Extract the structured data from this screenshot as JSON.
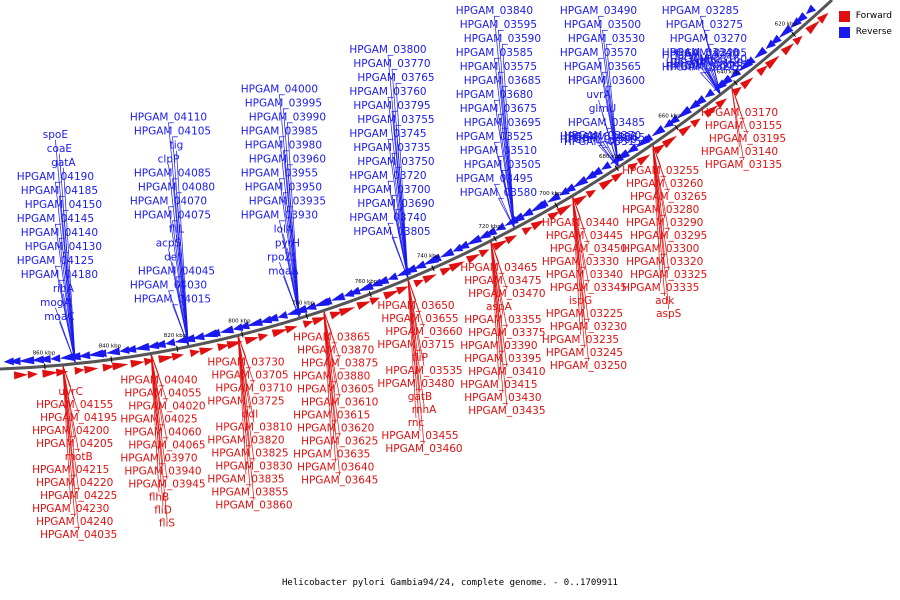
{
  "caption": "Helicobacter pylori Gambia94/24, complete genome. - 0..1709911",
  "legend": [
    {
      "label": "Forward",
      "color": "#e01010"
    },
    {
      "label": "Reverse",
      "color": "#1a1aee"
    }
  ],
  "colors": {
    "forward": "#e01010",
    "reverse": "#1a1aee",
    "backbone": "#555555"
  },
  "backbone_kbp": [
    860,
    840,
    820,
    800,
    780,
    760,
    740,
    720,
    700,
    680,
    660,
    640,
    620
  ],
  "reverse_genes": [
    "spoE",
    "coaE",
    "gatA",
    "HPGAM_04190",
    "HPGAM_04185",
    "HPGAM_04150",
    "HPGAM_04145",
    "HPGAM_04140",
    "HPGAM_04130",
    "HPGAM_04125",
    "HPGAM_04180",
    "ribA",
    "mogA",
    "moaC",
    "HPGAM_04110",
    "HPGAM_04105",
    "tig",
    "clpP",
    "HPGAM_04085",
    "HPGAM_04080",
    "HPGAM_04070",
    "HPGAM_04075",
    "fliL",
    "acpS",
    "def",
    "HPGAM_04045",
    "HPGAM_04030",
    "HPGAM_04015",
    "HPGAM_04000",
    "HPGAM_03995",
    "HPGAM_03990",
    "HPGAM_03985",
    "HPGAM_03980",
    "HPGAM_03960",
    "HPGAM_03955",
    "HPGAM_03950",
    "HPGAM_03935",
    "HPGAM_03930",
    "lolA",
    "pyrH",
    "rpoZ",
    "moaA",
    "HPGAM_03800",
    "HPGAM_03770",
    "HPGAM_03765",
    "HPGAM_03760",
    "HPGAM_03795",
    "HPGAM_03755",
    "HPGAM_03745",
    "HPGAM_03735",
    "HPGAM_03750",
    "HPGAM_03720",
    "HPGAM_03700",
    "HPGAM_03690",
    "HPGAM_03740",
    "HPGAM_03805",
    "HPGAM_03840",
    "HPGAM_03595",
    "HPGAM_03590",
    "HPGAM_03585",
    "HPGAM_03575",
    "HPGAM_03685",
    "HPGAM_03680",
    "HPGAM_03675",
    "HPGAM_03695",
    "HPGAM_03525",
    "HPGAM_03510",
    "HPGAM_03505",
    "HPGAM_03495",
    "HPGAM_03580",
    "HPGAM_03490",
    "HPGAM_03500",
    "HPGAM_03530",
    "HPGAM_03570",
    "HPGAM_03565",
    "HPGAM_03600",
    "uvrA",
    "glmU",
    "HPGAM_03485",
    "HPGAM_03400",
    "HPGAM_03370",
    "HPGAM_03365",
    "HPGAM_03360",
    "HPGAM_03315",
    "HPGAM_03285",
    "HPGAM_03275",
    "HPGAM_03270",
    "HPGAM_03240",
    "HPGAM_03215",
    "HPGAM_03205",
    "HPGAM_03200",
    "murC",
    "HPGAM_03160",
    "ligA",
    "HPGAM_03150",
    "HPGAM_03145",
    "HPGAM_03095"
  ],
  "forward_genes": [
    "uvrC",
    "HPGAM_04155",
    "HPGAM_04195",
    "HPGAM_04200",
    "HPGAM_04205",
    "motB",
    "HPGAM_04215",
    "HPGAM_04220",
    "HPGAM_04225",
    "HPGAM_04230",
    "HPGAM_04240",
    "HPGAM_04035",
    "HPGAM_04040",
    "HPGAM_04055",
    "HPGAM_04020",
    "HPGAM_04025",
    "HPGAM_04060",
    "HPGAM_04065",
    "HPGAM_03970",
    "HPGAM_03940",
    "HPGAM_03945",
    "flhB",
    "fliD",
    "fliS",
    "HPGAM_03730",
    "HPGAM_03705",
    "HPGAM_03710",
    "HPGAM_03725",
    "ddl",
    "HPGAM_03810",
    "HPGAM_03820",
    "HPGAM_03825",
    "HPGAM_03830",
    "HPGAM_03835",
    "HPGAM_03855",
    "HPGAM_03860",
    "HPGAM_03865",
    "HPGAM_03870",
    "HPGAM_03875",
    "HPGAM_03880",
    "HPGAM_03605",
    "HPGAM_03610",
    "HPGAM_03615",
    "HPGAM_03620",
    "HPGAM_03625",
    "HPGAM_03635",
    "HPGAM_03640",
    "HPGAM_03645",
    "HPGAM_03650",
    "HPGAM_03655",
    "HPGAM_03660",
    "HPGAM_03715",
    "fliP",
    "HPGAM_03535",
    "HPGAM_03480",
    "gatB",
    "rnhA",
    "rnc",
    "HPGAM_03455",
    "HPGAM_03460",
    "HPGAM_03465",
    "HPGAM_03475",
    "HPGAM_03470",
    "aspA",
    "HPGAM_03355",
    "HPGAM_03375",
    "HPGAM_03390",
    "HPGAM_03395",
    "HPGAM_03410",
    "HPGAM_03415",
    "HPGAM_03430",
    "HPGAM_03435",
    "HPGAM_03440",
    "HPGAM_03445",
    "HPGAM_03450",
    "HPGAM_03330",
    "HPGAM_03340",
    "HPGAM_03345",
    "ispG",
    "HPGAM_03225",
    "HPGAM_03230",
    "HPGAM_03235",
    "HPGAM_03245",
    "HPGAM_03250",
    "HPGAM_03255",
    "HPGAM_03260",
    "HPGAM_03265",
    "HPGAM_03280",
    "HPGAM_03290",
    "HPGAM_03295",
    "HPGAM_03300",
    "HPGAM_03320",
    "HPGAM_03325",
    "HPGAM_03335",
    "adk",
    "aspS",
    "HPGAM_03170",
    "HPGAM_03155",
    "HPGAM_03195",
    "HPGAM_03140",
    "HPGAM_03135"
  ]
}
